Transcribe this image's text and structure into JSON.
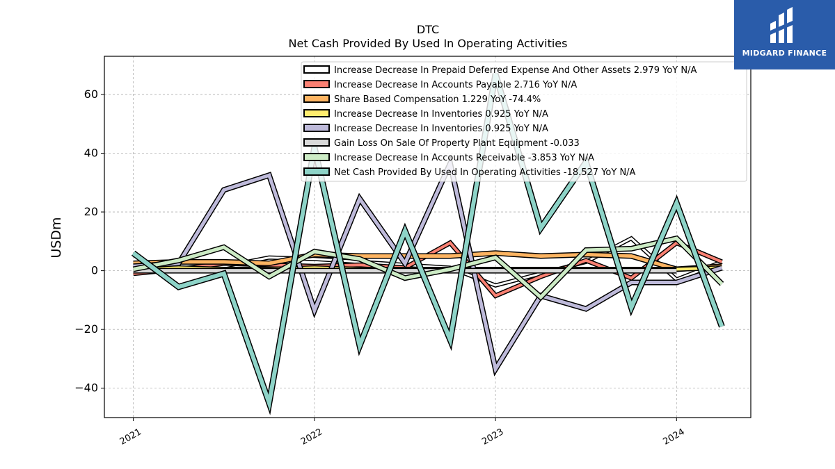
{
  "chart_data": {
    "type": "line",
    "title": "DTC",
    "subtitle": "Net Cash Provided By Used In Operating Activities",
    "xlabel": "",
    "ylabel": "USDm",
    "xlim": [
      2020.84,
      2024.41
    ],
    "ylim": [
      -50,
      73
    ],
    "xticks": [
      2021,
      2022,
      2023,
      2024
    ],
    "xtick_labels": [
      "2021",
      "2022",
      "2023",
      "2024"
    ],
    "yticks": [
      -40,
      -20,
      0,
      20,
      40,
      60
    ],
    "ytick_labels": [
      "−40",
      "−20",
      "0",
      "20",
      "40",
      "60"
    ],
    "grid": true,
    "legend_position": "top-right",
    "x": [
      2021.0,
      2021.25,
      2021.5,
      2021.75,
      2022.0,
      2022.25,
      2022.5,
      2022.75,
      2023.0,
      2023.25,
      2023.5,
      2023.75,
      2024.0,
      2024.25
    ],
    "series": [
      {
        "name": "Increase Decrease In Prepaid Deferred Expense And Other Assets  2.979 YoY N/A",
        "color": "#ffffff",
        "values": [
          2.5,
          2.0,
          1.5,
          4.5,
          4.0,
          3.0,
          2.0,
          1.0,
          -5.0,
          -1.0,
          3.0,
          11.0,
          -3.0,
          3.0
        ]
      },
      {
        "name": "Increase Decrease In Accounts Payable  2.716 YoY N/A",
        "color": "#fa8072",
        "values": [
          -1.0,
          0.5,
          2.5,
          2.0,
          1.5,
          2.0,
          1.0,
          9.5,
          -8.5,
          -2.0,
          3.5,
          -2.5,
          9.5,
          3.0
        ]
      },
      {
        "name": "Share Based Compensation  1.229 YoY -74.4%",
        "color": "#fdb462",
        "values": [
          2.5,
          3.0,
          3.0,
          2.5,
          5.5,
          5.0,
          5.0,
          5.0,
          6.0,
          5.0,
          5.5,
          5.0,
          0.5,
          1.5
        ]
      },
      {
        "name": "Increase Decrease In Inventories  0.925 YoY N/A",
        "color": "#ffed6f",
        "values": [
          0.5,
          1.0,
          0.5,
          0.5,
          1.0,
          0.5,
          0.5,
          0.5,
          0.5,
          0.5,
          0.5,
          0.5,
          0.5,
          1.0
        ]
      },
      {
        "name": "Increase Decrease In Inventories  0.925 YoY N/A",
        "color": "#bebada",
        "values": [
          1.5,
          2.5,
          27.5,
          32.5,
          -13.5,
          24.5,
          2.5,
          36.5,
          -33.5,
          -8.5,
          -13.0,
          -4.0,
          -4.0,
          1.0
        ]
      },
      {
        "name": "Gain Loss On Sale Of Property Plant Equipment  -0.033",
        "color": "#d9d9d9",
        "values": [
          0.0,
          0.0,
          0.0,
          0.0,
          0.0,
          0.0,
          0.0,
          0.0,
          0.0,
          0.0,
          0.0,
          0.0,
          0.0,
          null
        ]
      },
      {
        "name": "Increase Decrease In Accounts Receivable  -3.853 YoY N/A",
        "color": "#ccebc5",
        "values": [
          0.5,
          3.5,
          8.0,
          -2.0,
          6.5,
          4.0,
          -2.5,
          0.5,
          4.5,
          -9.0,
          7.0,
          7.5,
          11.0,
          -4.5
        ]
      },
      {
        "name": "Net Cash Provided By Used In Operating Activities  -18.527 YoY N/A",
        "color": "#8dd3c7",
        "values": [
          6.0,
          -5.5,
          -1.0,
          -45.0,
          42.0,
          -25.5,
          13.5,
          -23.5,
          67.0,
          14.5,
          37.0,
          -12.5,
          23.0,
          -19.0
        ]
      }
    ]
  },
  "logo": {
    "text": "MIDGARD FINANCE",
    "color": "#2a5caa"
  }
}
